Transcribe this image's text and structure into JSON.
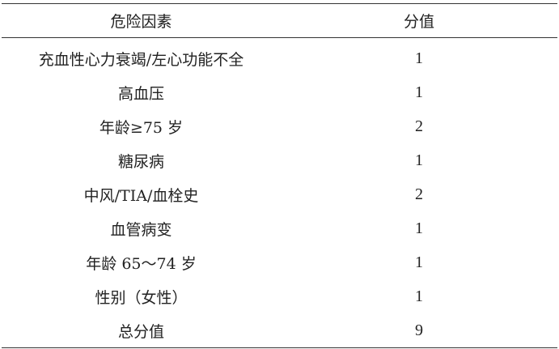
{
  "table": {
    "headers": [
      "危险因素",
      "分值"
    ],
    "rows": [
      {
        "factor": "充血性心力衰竭/左心功能不全",
        "score": "1"
      },
      {
        "factor": "高血压",
        "score": "1"
      },
      {
        "factor": "年龄≥75 岁",
        "score": "2"
      },
      {
        "factor": "糖尿病",
        "score": "1"
      },
      {
        "factor": "中风/TIA/血栓史",
        "score": "2"
      },
      {
        "factor": "血管病变",
        "score": "1"
      },
      {
        "factor": "年龄 65～74 岁",
        "score": "1"
      },
      {
        "factor": "性别（女性）",
        "score": "1"
      },
      {
        "factor": "总分值",
        "score": "9"
      }
    ]
  }
}
